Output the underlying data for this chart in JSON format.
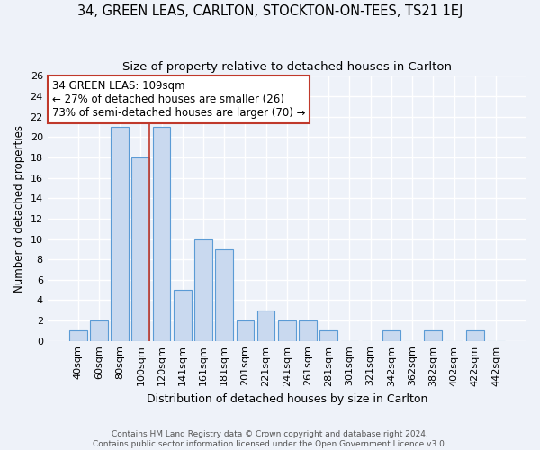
{
  "title": "34, GREEN LEAS, CARLTON, STOCKTON-ON-TEES, TS21 1EJ",
  "subtitle": "Size of property relative to detached houses in Carlton",
  "xlabel": "Distribution of detached houses by size in Carlton",
  "ylabel": "Number of detached properties",
  "bar_labels": [
    "40sqm",
    "60sqm",
    "80sqm",
    "100sqm",
    "120sqm",
    "141sqm",
    "161sqm",
    "181sqm",
    "201sqm",
    "221sqm",
    "241sqm",
    "261sqm",
    "281sqm",
    "301sqm",
    "321sqm",
    "342sqm",
    "362sqm",
    "382sqm",
    "402sqm",
    "422sqm",
    "442sqm"
  ],
  "bar_values": [
    1,
    2,
    21,
    18,
    21,
    5,
    10,
    9,
    2,
    3,
    2,
    2,
    1,
    0,
    0,
    1,
    0,
    1,
    0,
    1,
    0
  ],
  "bar_color": "#c9d9ef",
  "bar_edge_color": "#5b9bd5",
  "vline_x": 3.425,
  "vline_color": "#c0392b",
  "annotation_title": "34 GREEN LEAS: 109sqm",
  "annotation_line1": "← 27% of detached houses are smaller (26)",
  "annotation_line2": "73% of semi-detached houses are larger (70) →",
  "annotation_box_color": "white",
  "annotation_box_edge": "#c0392b",
  "ylim": [
    0,
    26
  ],
  "yticks": [
    0,
    2,
    4,
    6,
    8,
    10,
    12,
    14,
    16,
    18,
    20,
    22,
    24,
    26
  ],
  "footer_line1": "Contains HM Land Registry data © Crown copyright and database right 2024.",
  "footer_line2": "Contains public sector information licensed under the Open Government Licence v3.0.",
  "bg_color": "#eef2f9",
  "grid_color": "#d0d8e8",
  "title_fontsize": 10.5,
  "subtitle_fontsize": 9.5,
  "annotation_fontsize": 8.5,
  "ylabel_fontsize": 8.5,
  "xlabel_fontsize": 9,
  "tick_fontsize": 8,
  "footer_fontsize": 6.5
}
